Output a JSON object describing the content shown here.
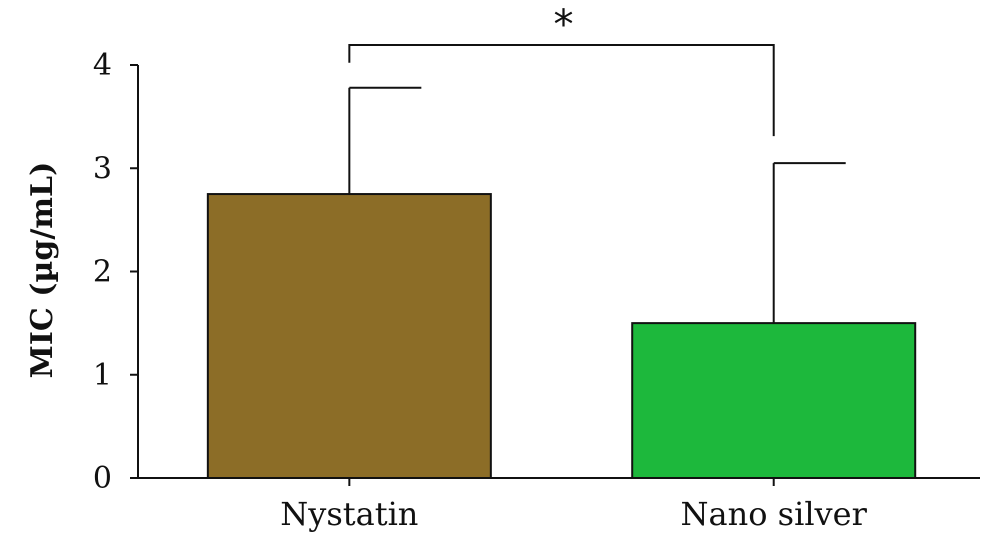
{
  "chart_data": {
    "type": "bar",
    "categories": [
      "Nystatin",
      "Nano silver"
    ],
    "values": [
      2.75,
      1.5
    ],
    "errors": [
      1.03,
      1.55
    ],
    "colors": [
      "#8C6D27",
      "#1DB83C"
    ],
    "ylabel": "MIC (µg/mL)",
    "ylim": [
      0,
      4
    ],
    "yticks": [
      "0",
      "1",
      "2",
      "3",
      "4"
    ],
    "significance": {
      "label": "*",
      "between": [
        "Nystatin",
        "Nano silver"
      ]
    },
    "grid": false
  }
}
